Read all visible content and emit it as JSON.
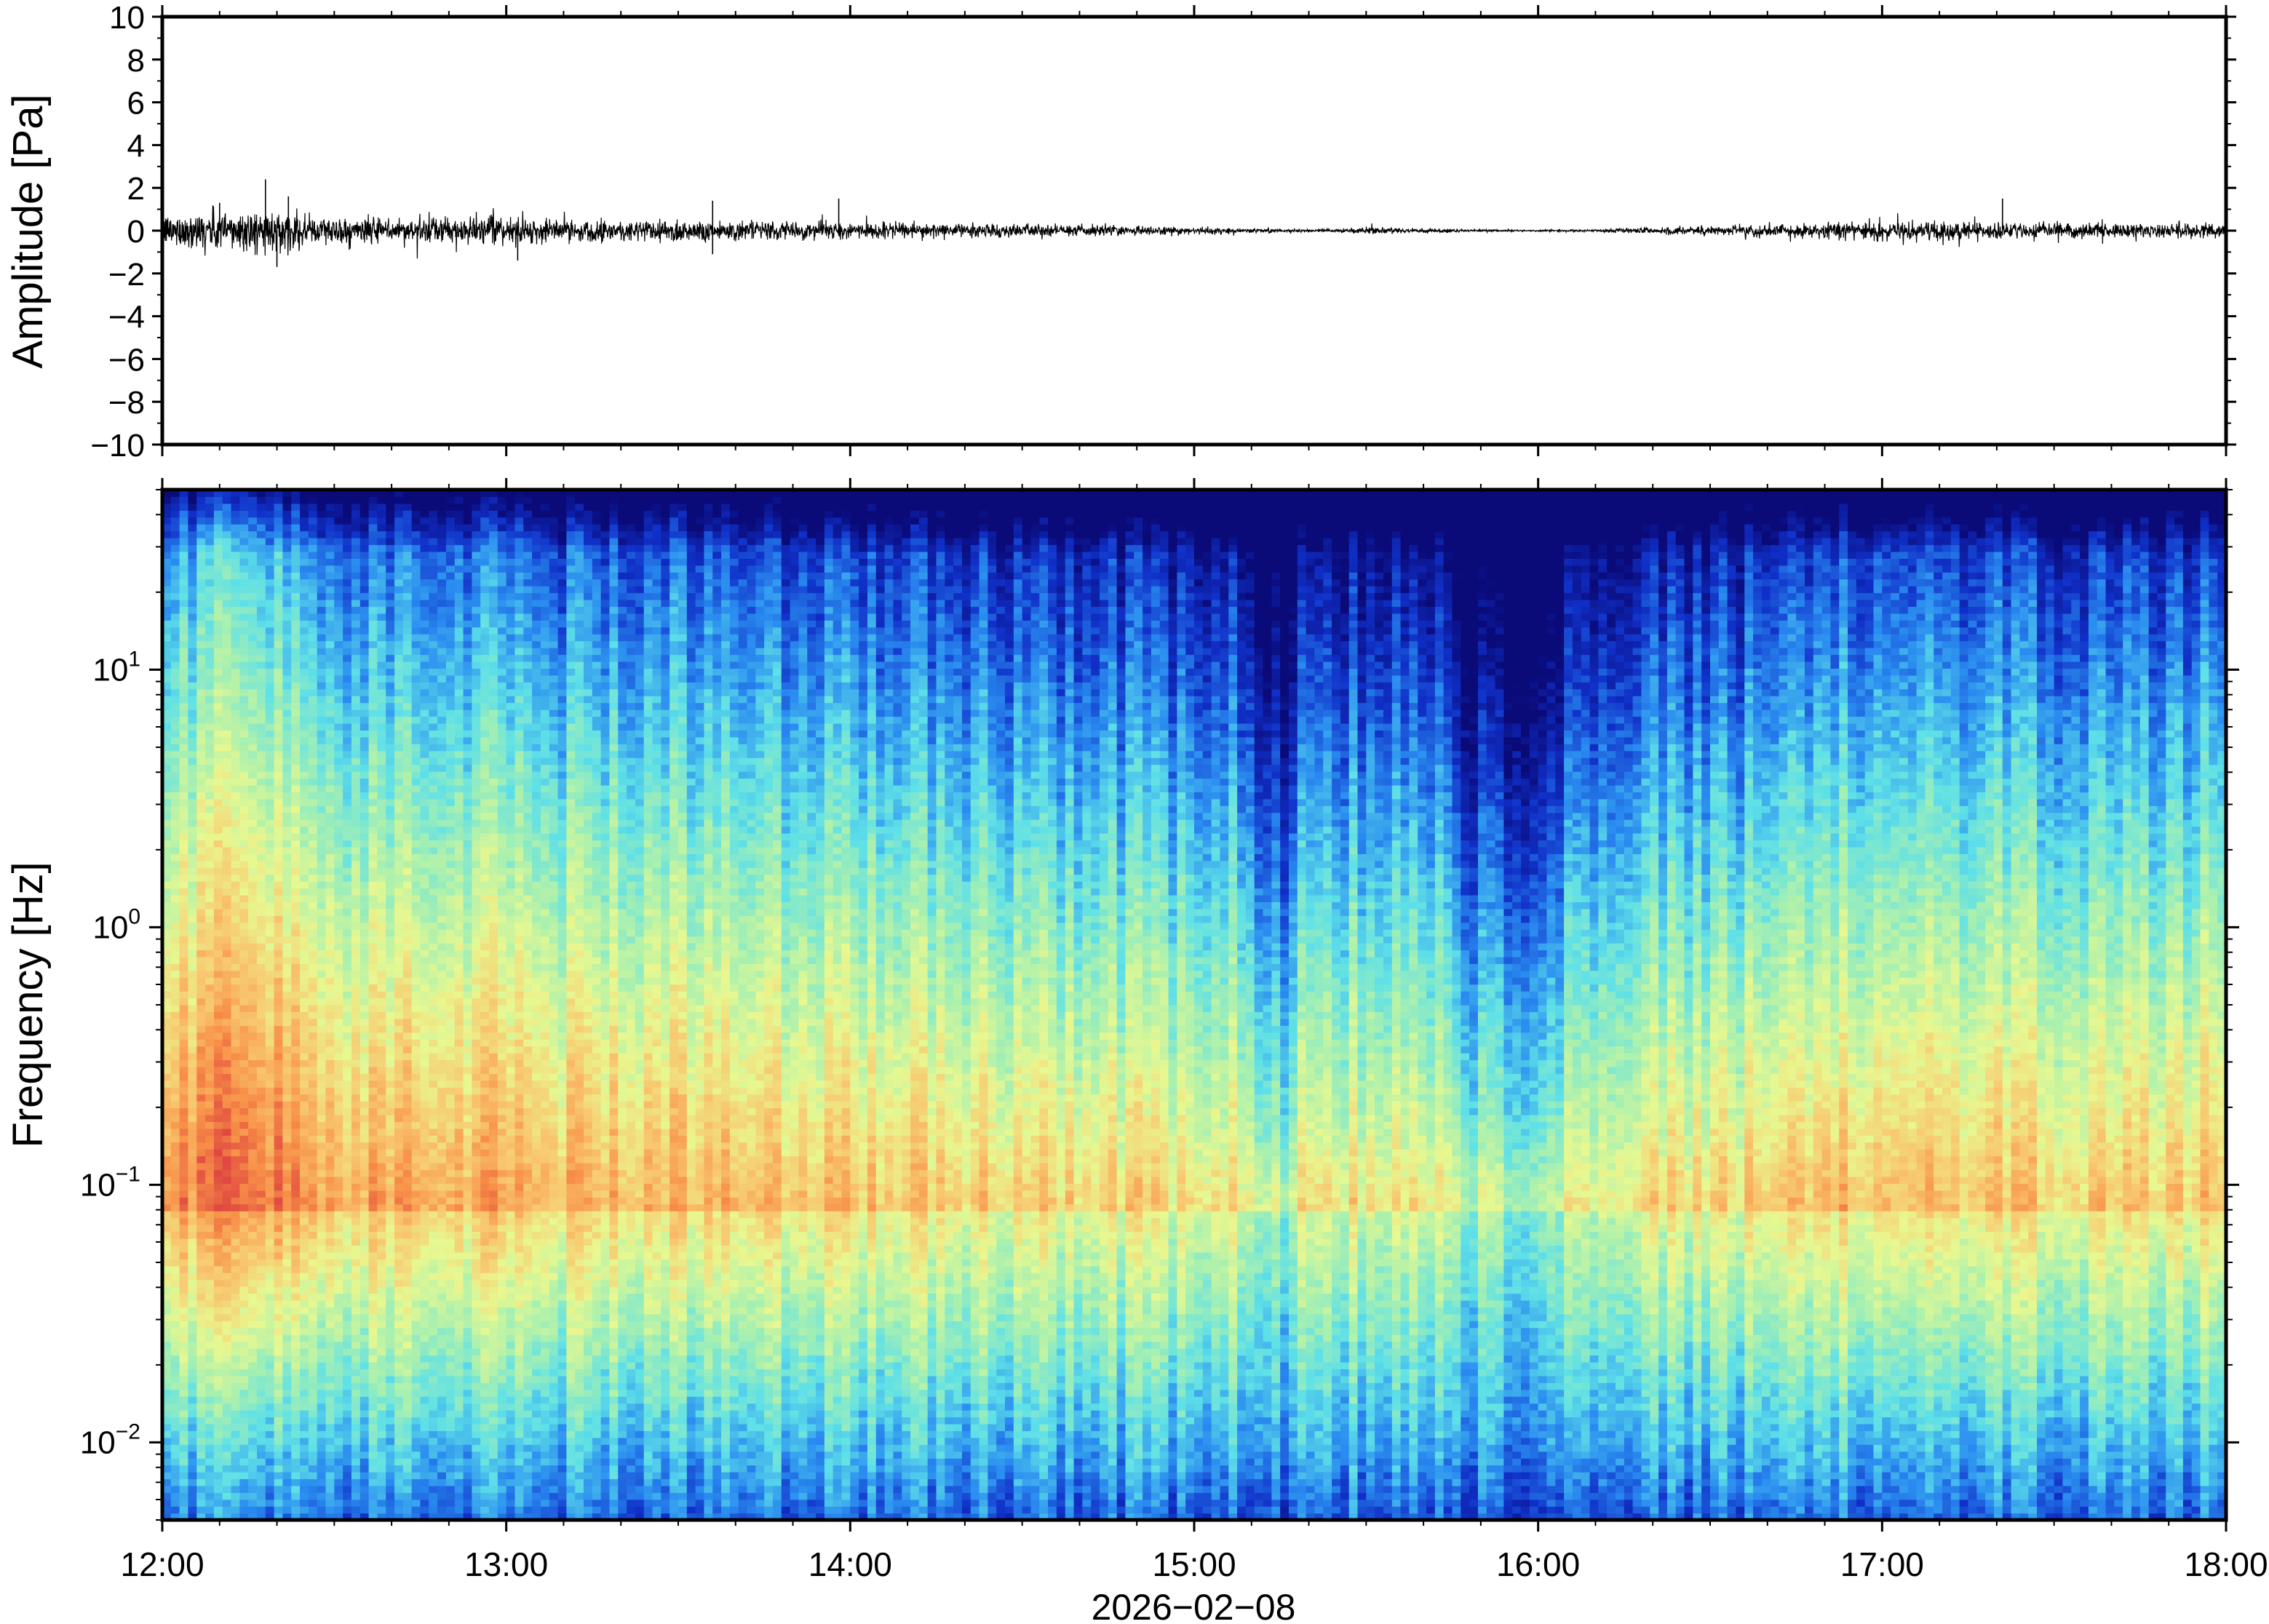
{
  "figure": {
    "date_label": "2026−02−08",
    "background": "#ffffff"
  },
  "chart_data": [
    {
      "type": "line",
      "panel": "waveform",
      "ylabel": "Amplitude [Pa]",
      "ylim": [
        -10,
        10
      ],
      "yticks": [
        10,
        8,
        6,
        4,
        2,
        0,
        -2,
        -4,
        -6,
        -8,
        -10
      ],
      "ytick_labels": [
        "10",
        "8",
        "6",
        "4",
        "2",
        "0",
        "−2",
        "−4",
        "−6",
        "−8",
        "−10"
      ],
      "xlim": [
        "12:00",
        "18:00"
      ],
      "grid": false,
      "trace_color": "#000000",
      "envelope": {
        "times": [
          "12:00",
          "12:10",
          "12:20",
          "12:30",
          "12:40",
          "12:50",
          "13:00",
          "13:10",
          "13:20",
          "13:30",
          "13:40",
          "13:50",
          "14:00",
          "14:10",
          "14:20",
          "14:30",
          "14:40",
          "14:50",
          "15:00",
          "15:10",
          "15:20",
          "15:30",
          "15:40",
          "15:50",
          "16:00",
          "16:10",
          "16:20",
          "16:30",
          "16:40",
          "16:50",
          "17:00",
          "17:10",
          "17:20",
          "17:30",
          "17:40",
          "17:50",
          "18:00"
        ],
        "amplitude": [
          0.6,
          0.9,
          0.8,
          0.55,
          0.5,
          0.55,
          0.55,
          0.45,
          0.45,
          0.5,
          0.4,
          0.35,
          0.35,
          0.3,
          0.3,
          0.25,
          0.25,
          0.2,
          0.15,
          0.1,
          0.05,
          0.12,
          0.1,
          0.05,
          0.03,
          0.05,
          0.15,
          0.2,
          0.25,
          0.3,
          0.45,
          0.4,
          0.35,
          0.3,
          0.3,
          0.3,
          0.35
        ]
      },
      "peaks": [
        {
          "time": "12:10",
          "value": 1.3
        },
        {
          "time": "12:18",
          "value": 2.4
        },
        {
          "time": "12:22",
          "value": 1.6
        },
        {
          "time": "12:20",
          "value": -1.7
        },
        {
          "time": "13:02",
          "value": -1.4
        },
        {
          "time": "13:36",
          "value": 1.4
        },
        {
          "time": "13:36",
          "value": -1.1
        },
        {
          "time": "13:58",
          "value": 1.5
        },
        {
          "time": "17:21",
          "value": 1.5
        },
        {
          "time": "18:00",
          "value": 1.0
        }
      ]
    },
    {
      "type": "heatmap",
      "panel": "spectrogram",
      "ylabel": "Frequency [Hz]",
      "yscale": "log",
      "ylim": [
        0.005,
        50
      ],
      "yticks": [
        0.01,
        0.1,
        1,
        10
      ],
      "ytick_labels": [
        {
          "base": "10",
          "exp": "−2"
        },
        {
          "base": "10",
          "exp": "−1"
        },
        {
          "base": "10",
          "exp": "0"
        },
        {
          "base": "10",
          "exp": "1"
        }
      ],
      "x": [
        "12:00",
        "13:00",
        "14:00",
        "15:00",
        "16:00",
        "17:00",
        "18:00"
      ],
      "xtick_labels": [
        "12:00",
        "13:00",
        "14:00",
        "15:00",
        "16:00",
        "17:00",
        "18:00"
      ],
      "xlabel": "2026−02−08",
      "colormap": [
        "#0a0a78",
        "#1030c8",
        "#2a8cf0",
        "#5ee0e8",
        "#a8f0b0",
        "#e8f890",
        "#f8c870",
        "#f89048",
        "#e04840"
      ],
      "quiet_intervals": [
        {
          "start": "15:12",
          "end": "15:16",
          "note": "dark band"
        },
        {
          "start": "15:47",
          "end": "16:03",
          "note": "dark band"
        }
      ],
      "grid": false
    }
  ]
}
